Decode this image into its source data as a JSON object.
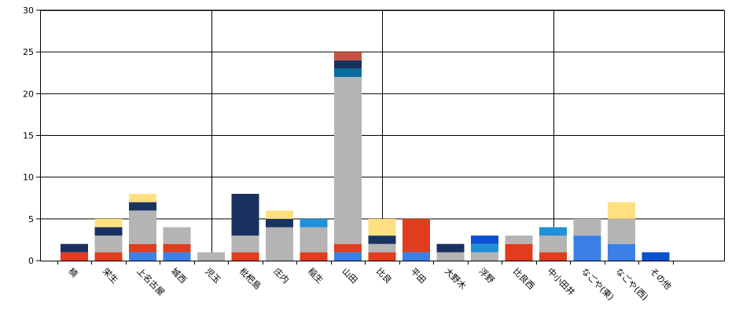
{
  "chart_data": {
    "type": "bar",
    "stacked": true,
    "grid": true,
    "ylim": [
      0,
      30
    ],
    "yticks": [
      0,
      5,
      10,
      15,
      20,
      25,
      30
    ],
    "categories": [
      "楠",
      "栄生",
      "上名古屋",
      "城西",
      "児玉",
      "枇杷島",
      "庄内",
      "稲生",
      "山田",
      "比良",
      "平田",
      "大野木",
      "浮野",
      "比良西",
      "中小田井",
      "なごや(東)",
      "なごや(西)",
      "その他"
    ],
    "category_labels": [
      "楠",
      "栄生",
      "上名古屋",
      "城西",
      "児玉",
      "枇杷島",
      "庄内",
      "稲生",
      "山田",
      "比良",
      "平田",
      "大野木",
      "浮野",
      "比良西",
      "中小田井",
      "なごや(東)",
      "なごや(西)",
      "その他"
    ],
    "series_colors": [
      "#3b80e6",
      "#e03c1e",
      "#b4b4b4",
      "#0a6ea0",
      "#1a3260",
      "#ffe080",
      "#2090d8",
      "#0a50d0",
      "#c85040"
    ],
    "series": [
      {
        "values": [
          0,
          0,
          1,
          1,
          0,
          0,
          0,
          0,
          1,
          0,
          1,
          0,
          0,
          0,
          0,
          3,
          2,
          0
        ]
      },
      {
        "values": [
          1,
          1,
          1,
          1,
          0,
          1,
          0,
          1,
          1,
          1,
          4,
          0,
          0,
          2,
          1,
          0,
          0,
          0
        ]
      },
      {
        "values": [
          0,
          2,
          4,
          2,
          1,
          2,
          4,
          3,
          20,
          1,
          0,
          1,
          1,
          1,
          2,
          2,
          3,
          0
        ]
      },
      {
        "values": [
          0,
          0,
          0,
          0,
          0,
          0,
          0,
          0,
          1,
          0,
          0,
          0,
          0,
          0,
          0,
          0,
          0,
          0
        ]
      },
      {
        "values": [
          1,
          1,
          1,
          0,
          0,
          5,
          1,
          0,
          1,
          1,
          0,
          1,
          0,
          0,
          0,
          0,
          0,
          0
        ]
      },
      {
        "values": [
          0,
          1,
          1,
          0,
          0,
          0,
          1,
          0,
          0,
          2,
          0,
          0,
          0,
          0,
          0,
          0,
          2,
          0
        ]
      },
      {
        "values": [
          0,
          0,
          0,
          0,
          0,
          0,
          0,
          1,
          0,
          0,
          0,
          0,
          1,
          0,
          1,
          0,
          0,
          0
        ]
      },
      {
        "values": [
          0,
          0,
          0,
          0,
          0,
          0,
          0,
          0,
          0,
          0,
          0,
          0,
          1,
          0,
          0,
          0,
          0,
          1
        ]
      },
      {
        "values": [
          0,
          0,
          0,
          0,
          0,
          0,
          0,
          0,
          1,
          0,
          0,
          0,
          0,
          0,
          0,
          0,
          0,
          0
        ]
      }
    ]
  }
}
